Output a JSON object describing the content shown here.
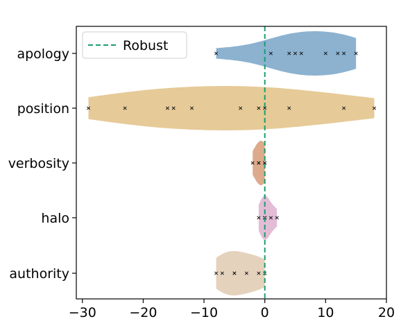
{
  "caption_fragment": "",
  "chart_data": {
    "type": "violin",
    "orientation": "horizontal",
    "categories": [
      "apology",
      "position",
      "verbosity",
      "halo",
      "authority"
    ],
    "series": [
      {
        "name": "apology",
        "color": "#7faacb",
        "points": [
          -8,
          1,
          4,
          5,
          6,
          10,
          12,
          13,
          15
        ],
        "range": [
          -8,
          15
        ]
      },
      {
        "name": "position",
        "color": "#e3c48d",
        "points": [
          -29,
          -23,
          -16,
          -15,
          -12,
          -4,
          -1,
          0,
          4,
          13,
          18
        ],
        "range": [
          -29,
          18
        ]
      },
      {
        "name": "verbosity",
        "color": "#d9a17f",
        "points": [
          -2,
          -1,
          -1,
          0,
          0
        ],
        "range": [
          -2,
          0
        ]
      },
      {
        "name": "halo",
        "color": "#e0b5d2",
        "points": [
          -1,
          0,
          0,
          0,
          1,
          2
        ],
        "range": [
          -1,
          2
        ]
      },
      {
        "name": "authority",
        "color": "#e1cdb6",
        "points": [
          -8,
          -7,
          -5,
          -5,
          -3,
          -1,
          0
        ],
        "range": [
          -8,
          0
        ]
      }
    ],
    "reference_line": {
      "x": 0,
      "label": "Robust",
      "color": "#1a9e6e",
      "style": "dashed"
    },
    "xlim": [
      -31,
      20
    ],
    "xticks": [
      -30,
      -20,
      -10,
      0,
      10,
      20
    ],
    "xtick_labels": [
      "−30",
      "−20",
      "−10",
      "0",
      "10",
      "20"
    ],
    "legend": {
      "position": "top-left",
      "entries": [
        "Robust"
      ]
    },
    "grid": false,
    "title": "",
    "xlabel": "",
    "ylabel": ""
  }
}
